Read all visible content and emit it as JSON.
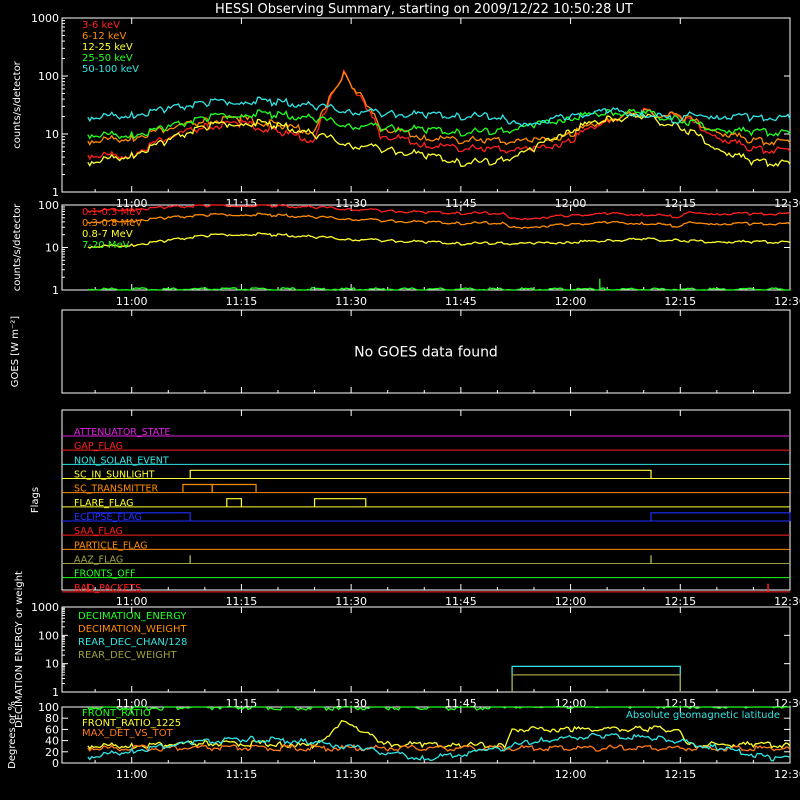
{
  "title": "HESSI Observing Summary, starting on 2009/12/22 10:50:28 UT",
  "time_ticks": [
    "11:00",
    "11:15",
    "11:30",
    "11:45",
    "12:00",
    "12:15",
    "12:30"
  ],
  "colors": {
    "red": "#ff2020",
    "orange": "#ff8c00",
    "yellow": "#ffff30",
    "green": "#20ff20",
    "cyan": "#30e6e6",
    "magenta": "#e020e0",
    "blue": "#2030ff",
    "olive": "#a0a040",
    "darkred": "#c02020",
    "bright_orange": "#ff7a1a"
  },
  "chart_data": [
    {
      "type": "line",
      "ylabel": "counts/s/detector",
      "ylog": true,
      "ylim": [
        1,
        1000
      ],
      "y_ticks": [
        "1",
        "10",
        "100",
        "1000"
      ],
      "series": [
        {
          "name": "3-6 keV",
          "color": "red",
          "x": [
            "10:54",
            "11:00",
            "11:10",
            "11:15",
            "11:20",
            "11:25",
            "11:27",
            "11:29",
            "11:31",
            "11:34",
            "11:40",
            "11:48",
            "11:55",
            "12:00",
            "12:05",
            "12:10",
            "12:15",
            "12:20",
            "12:25",
            "12:30"
          ],
          "values": [
            4,
            4,
            12,
            14,
            10,
            7,
            30,
            100,
            40,
            9,
            6,
            5,
            5,
            7,
            16,
            22,
            18,
            8,
            5,
            5
          ]
        },
        {
          "name": "6-12 keV",
          "color": "orange",
          "x": [
            "10:54",
            "11:00",
            "11:10",
            "11:15",
            "11:20",
            "11:25",
            "11:27",
            "11:29",
            "11:31",
            "11:34",
            "11:40",
            "11:48",
            "11:55",
            "12:00",
            "12:05",
            "12:10",
            "12:15",
            "12:20",
            "12:25",
            "12:30"
          ],
          "values": [
            7,
            8,
            15,
            17,
            13,
            10,
            35,
            95,
            45,
            12,
            8,
            7,
            7,
            9,
            17,
            21,
            19,
            10,
            7,
            7
          ]
        },
        {
          "name": "12-25 keV",
          "color": "yellow",
          "x": [
            "10:54",
            "11:00",
            "11:05",
            "11:10",
            "11:15",
            "11:20",
            "11:25",
            "11:30",
            "11:35",
            "11:40",
            "11:45",
            "11:50",
            "11:55",
            "12:00",
            "12:05",
            "12:10",
            "12:15",
            "12:20",
            "12:25",
            "12:30"
          ],
          "values": [
            3,
            4,
            7,
            12,
            15,
            13,
            9,
            6,
            5,
            4,
            3,
            3,
            5,
            11,
            17,
            18,
            12,
            5,
            3,
            3
          ]
        },
        {
          "name": "25-50 keV",
          "color": "green",
          "x": [
            "10:54",
            "11:00",
            "11:05",
            "11:10",
            "11:15",
            "11:20",
            "11:25",
            "11:30",
            "11:35",
            "11:40",
            "11:45",
            "11:50",
            "11:55",
            "12:00",
            "12:05",
            "12:10",
            "12:15",
            "12:20",
            "12:25",
            "12:30"
          ],
          "values": [
            9,
            9,
            12,
            17,
            21,
            20,
            17,
            13,
            12,
            11,
            10,
            10,
            13,
            18,
            22,
            21,
            16,
            11,
            10,
            10
          ]
        },
        {
          "name": "50-100 keV",
          "color": "cyan",
          "x": [
            "10:54",
            "11:00",
            "11:05",
            "11:10",
            "11:15",
            "11:20",
            "11:25",
            "11:30",
            "11:35",
            "11:40",
            "11:45",
            "11:51",
            "11:52",
            "11:55",
            "12:00",
            "12:05",
            "12:10",
            "12:15",
            "12:16",
            "12:20",
            "12:25",
            "12:30"
          ],
          "values": [
            18,
            20,
            25,
            31,
            35,
            33,
            28,
            23,
            21,
            20,
            19,
            18,
            14,
            15,
            19,
            23,
            21,
            15,
            19,
            19,
            18,
            18
          ]
        }
      ]
    },
    {
      "type": "line",
      "ylabel": "counts/s/detector",
      "ylog": true,
      "ylim": [
        1,
        100
      ],
      "y_ticks": [
        "1",
        "10",
        "100"
      ],
      "series": [
        {
          "name": "0.1-0.3 MeV",
          "color": "red",
          "x": [
            "10:54",
            "11:00",
            "11:05",
            "11:10",
            "11:15",
            "11:20",
            "11:25",
            "11:30",
            "11:35",
            "11:40",
            "11:45",
            "11:51",
            "11:52",
            "11:55",
            "12:00",
            "12:05",
            "12:10",
            "12:15",
            "12:16",
            "12:20",
            "12:25",
            "12:30"
          ],
          "values": [
            70,
            77,
            85,
            92,
            95,
            92,
            85,
            77,
            70,
            65,
            62,
            61,
            45,
            48,
            55,
            60,
            58,
            50,
            62,
            60,
            60,
            60
          ]
        },
        {
          "name": "0.3-0.8 MeV",
          "color": "orange",
          "x": [
            "10:54",
            "11:00",
            "11:05",
            "11:10",
            "11:15",
            "11:20",
            "11:25",
            "11:30",
            "11:35",
            "11:40",
            "11:45",
            "11:51",
            "11:52",
            "11:55",
            "12:00",
            "12:05",
            "12:10",
            "12:15",
            "12:16",
            "12:20",
            "12:25",
            "12:30"
          ],
          "values": [
            38,
            42,
            48,
            55,
            58,
            55,
            50,
            45,
            41,
            38,
            36,
            36,
            28,
            30,
            34,
            37,
            36,
            30,
            36,
            35,
            35,
            35
          ]
        },
        {
          "name": "0.8-7 MeV",
          "color": "yellow",
          "x": [
            "10:54",
            "11:00",
            "11:05",
            "11:10",
            "11:15",
            "11:20",
            "11:25",
            "11:30",
            "11:35",
            "11:40",
            "11:45",
            "11:50",
            "11:55",
            "12:00",
            "12:05",
            "12:10",
            "12:15",
            "12:20",
            "12:25",
            "12:30"
          ],
          "values": [
            10,
            11,
            14,
            18,
            20,
            19,
            17,
            15,
            14,
            13,
            12,
            12,
            12,
            13,
            14,
            15,
            14,
            13,
            13,
            13
          ]
        },
        {
          "name": "7-20 MeV",
          "color": "green",
          "x": [
            "10:54",
            "12:04",
            "12:04",
            "12:04",
            "12:30"
          ],
          "values": [
            1,
            1,
            1.8,
            1,
            1
          ]
        }
      ]
    },
    {
      "type": "line",
      "ylabel": "GOES [W m⁻²]",
      "message": "No GOES data found",
      "series": []
    },
    {
      "type": "line",
      "ylabel": "Flags",
      "flags": [
        {
          "name": "ATTENUATOR_STATE",
          "color": "magenta",
          "segments": []
        },
        {
          "name": "GAP_FLAG",
          "color": "red",
          "segments": []
        },
        {
          "name": "NON_SOLAR_EVENT",
          "color": "cyan",
          "segments": []
        },
        {
          "name": "SC_IN_SUNLIGHT",
          "color": "yellow",
          "segments": [
            [
              "11:08",
              "12:11"
            ]
          ]
        },
        {
          "name": "SC_TRANSMITTER",
          "color": "orange",
          "segments": [
            [
              "11:07",
              "11:11"
            ],
            [
              "11:11",
              "11:17"
            ]
          ]
        },
        {
          "name": "FLARE_FLAG",
          "color": "yellow",
          "segments": [
            [
              "11:13",
              "11:15"
            ],
            [
              "11:25",
              "11:32"
            ]
          ]
        },
        {
          "name": "ECLIPSE_FLAG",
          "color": "blue",
          "segments": [
            [
              "10:54",
              "11:08"
            ],
            [
              "12:11",
              "12:30"
            ]
          ]
        },
        {
          "name": "SAA_FLAG",
          "color": "red",
          "segments": []
        },
        {
          "name": "PARTICLE_FLAG",
          "color": "orange",
          "segments": []
        },
        {
          "name": "AAZ_FLAG",
          "color": "olive",
          "segments": [
            [
              "11:08",
              "11:08"
            ],
            [
              "12:11",
              "12:11"
            ]
          ]
        },
        {
          "name": "FRONTS_OFF",
          "color": "green",
          "segments": []
        },
        {
          "name": "BAD_PACKETS",
          "color": "red",
          "segments": [
            [
              "10:54",
              "10:54"
            ],
            [
              "12:27",
              "12:27"
            ]
          ]
        }
      ]
    },
    {
      "type": "line",
      "ylabel": "DECIMATION ENERGY or weight",
      "ylog": true,
      "ylim": [
        1,
        1000
      ],
      "y_ticks": [
        "1",
        "10",
        "100",
        "1000"
      ],
      "series": [
        {
          "name": "DECIMATION_ENERGY",
          "color": "green",
          "x": [],
          "values": []
        },
        {
          "name": "DECIMATION_WEIGHT",
          "color": "orange",
          "x": [],
          "values": []
        },
        {
          "name": "REAR_DEC_CHAN/128",
          "color": "cyan",
          "x": [
            "11:52",
            "11:52",
            "12:15",
            "12:15"
          ],
          "values": [
            1,
            8,
            8,
            1
          ]
        },
        {
          "name": "REAR_DEC_WEIGHT",
          "color": "olive",
          "x": [
            "11:52",
            "11:52",
            "12:15",
            "12:15"
          ],
          "values": [
            1,
            4,
            4,
            1
          ]
        }
      ]
    },
    {
      "type": "line",
      "ylabel": "Degrees or %",
      "ylim": [
        0,
        100
      ],
      "y_ticks": [
        "0",
        "20",
        "40",
        "60",
        "80",
        "100"
      ],
      "annotation": "Absolute geomagnetic latitude",
      "series": [
        {
          "name": "FRONT_RATIO",
          "color": "green",
          "x": [
            "10:54",
            "11:51",
            "11:52",
            "12:30"
          ],
          "values": [
            97,
            97,
            100,
            100
          ]
        },
        {
          "name": "FRONT_RATIO_1225",
          "color": "yellow",
          "x": [
            "10:54",
            "11:00",
            "11:10",
            "11:20",
            "11:25",
            "11:27",
            "11:29",
            "11:31",
            "11:35",
            "11:40",
            "11:45",
            "11:51",
            "11:52",
            "12:00",
            "12:10",
            "12:15",
            "12:16",
            "12:25",
            "12:30"
          ],
          "values": [
            28,
            29,
            32,
            32,
            27,
            45,
            72,
            55,
            32,
            30,
            29,
            29,
            58,
            58,
            58,
            58,
            30,
            30,
            30
          ]
        },
        {
          "name": "MAX_DET_VS_TOT",
          "color": "bright_orange",
          "x": [
            "10:54",
            "12:30"
          ],
          "values": [
            24,
            24
          ]
        },
        {
          "name": "Absolute geomagnetic latitude",
          "color": "cyan",
          "x": [
            "10:54",
            "11:00",
            "11:08",
            "11:16",
            "11:24",
            "11:32",
            "11:40",
            "11:48",
            "11:56",
            "12:04",
            "12:12",
            "12:20",
            "12:28",
            "12:30"
          ],
          "values": [
            8,
            20,
            33,
            40,
            36,
            22,
            5,
            18,
            38,
            47,
            42,
            25,
            5,
            10
          ]
        }
      ]
    }
  ]
}
